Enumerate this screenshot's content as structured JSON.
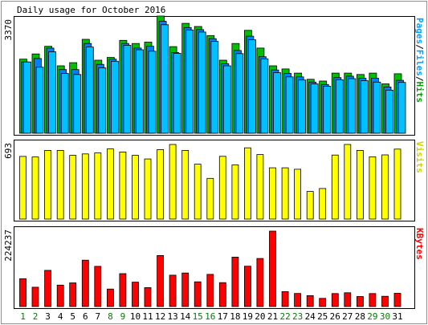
{
  "title": "Daily usage for October 2016",
  "chart_data": [
    {
      "type": "bar",
      "name": "hits-files-pages",
      "ymax_label": "3370",
      "ymax": 3370,
      "side_label_parts": [
        {
          "text": "Pages",
          "color": "#00a0ff"
        },
        {
          "text": "/",
          "color": "#000000"
        },
        {
          "text": "Files",
          "color": "#00a0ff"
        },
        {
          "text": "/",
          "color": "#000000"
        },
        {
          "text": "Hits",
          "color": "#00a000"
        }
      ],
      "categories": [
        "1",
        "2",
        "3",
        "4",
        "5",
        "6",
        "7",
        "8",
        "9",
        "10",
        "11",
        "12",
        "13",
        "14",
        "15",
        "16",
        "17",
        "18",
        "19",
        "20",
        "21",
        "22",
        "23",
        "24",
        "25",
        "26",
        "27",
        "28",
        "29",
        "30",
        "31"
      ],
      "series": [
        {
          "name": "Hits",
          "color": "#00c000",
          "values": [
            2130,
            2280,
            2500,
            1940,
            2030,
            2700,
            2100,
            2180,
            2670,
            2580,
            2620,
            3370,
            2490,
            3160,
            3070,
            2810,
            2100,
            2580,
            2960,
            2450,
            1940,
            1850,
            1730,
            1550,
            1500,
            1730,
            1730,
            1690,
            1730,
            1420,
            1710
          ]
        },
        {
          "name": "Files",
          "color": "#0080ff",
          "values": [
            2050,
            2150,
            2450,
            1830,
            1830,
            2580,
            1980,
            2130,
            2580,
            2450,
            2500,
            3220,
            2320,
            3040,
            2980,
            2720,
            2000,
            2380,
            2790,
            2200,
            1820,
            1720,
            1620,
            1470,
            1400,
            1600,
            1640,
            1580,
            1580,
            1330,
            1520
          ]
        },
        {
          "name": "Pages",
          "color": "#00c0ff",
          "values": [
            2050,
            1900,
            2340,
            1720,
            1690,
            2480,
            1880,
            2070,
            2530,
            2400,
            2360,
            3120,
            2300,
            2970,
            2910,
            2640,
            1940,
            2290,
            2690,
            2140,
            1740,
            1620,
            1530,
            1420,
            1350,
            1540,
            1570,
            1510,
            1470,
            1240,
            1460
          ]
        }
      ]
    },
    {
      "type": "bar",
      "name": "visits",
      "ymax_label": "693",
      "ymax": 693,
      "side_label_parts": [
        {
          "text": "Visits",
          "color": "#d0d000"
        }
      ],
      "categories": [
        "1",
        "2",
        "3",
        "4",
        "5",
        "6",
        "7",
        "8",
        "9",
        "10",
        "11",
        "12",
        "13",
        "14",
        "15",
        "16",
        "17",
        "18",
        "19",
        "20",
        "21",
        "22",
        "23",
        "24",
        "25",
        "26",
        "27",
        "28",
        "29",
        "30",
        "31"
      ],
      "series": [
        {
          "name": "Visits",
          "color": "#ffff00",
          "values": [
            582,
            577,
            638,
            638,
            592,
            605,
            614,
            651,
            623,
            592,
            558,
            645,
            693,
            638,
            510,
            378,
            583,
            503,
            662,
            599,
            476,
            476,
            463,
            256,
            284,
            595,
            693,
            638,
            578,
            596,
            650
          ]
        }
      ]
    },
    {
      "type": "bar",
      "name": "kbytes",
      "ymax_label": "224237",
      "ymax": 224237,
      "side_label_parts": [
        {
          "text": "KBytes",
          "color": "#ff0000"
        }
      ],
      "categories": [
        "1",
        "2",
        "3",
        "4",
        "5",
        "6",
        "7",
        "8",
        "9",
        "10",
        "11",
        "12",
        "13",
        "14",
        "15",
        "16",
        "17",
        "18",
        "19",
        "20",
        "21",
        "22",
        "23",
        "24",
        "25",
        "26",
        "27",
        "28",
        "29",
        "30",
        "31"
      ],
      "series": [
        {
          "name": "KBytes",
          "color": "#ff0000",
          "values": [
            82700,
            57500,
            107500,
            63600,
            70400,
            138000,
            119500,
            51900,
            97900,
            72400,
            56200,
            151600,
            93300,
            99600,
            73500,
            95700,
            71000,
            146900,
            120100,
            143000,
            224237,
            44300,
            38800,
            32400,
            24400,
            38600,
            41000,
            29700,
            38700,
            30500,
            39300
          ]
        }
      ]
    }
  ],
  "x_labels": [
    {
      "text": "1",
      "color": "#008000"
    },
    {
      "text": "2",
      "color": "#008000"
    },
    {
      "text": "3",
      "color": "#000000"
    },
    {
      "text": "4",
      "color": "#000000"
    },
    {
      "text": "5",
      "color": "#000000"
    },
    {
      "text": "6",
      "color": "#000000"
    },
    {
      "text": "7",
      "color": "#000000"
    },
    {
      "text": "8",
      "color": "#008000"
    },
    {
      "text": "9",
      "color": "#008000"
    },
    {
      "text": "10",
      "color": "#000000"
    },
    {
      "text": "11",
      "color": "#000000"
    },
    {
      "text": "12",
      "color": "#000000"
    },
    {
      "text": "13",
      "color": "#000000"
    },
    {
      "text": "14",
      "color": "#000000"
    },
    {
      "text": "15",
      "color": "#008000"
    },
    {
      "text": "16",
      "color": "#008000"
    },
    {
      "text": "17",
      "color": "#000000"
    },
    {
      "text": "18",
      "color": "#000000"
    },
    {
      "text": "19",
      "color": "#000000"
    },
    {
      "text": "20",
      "color": "#000000"
    },
    {
      "text": "21",
      "color": "#000000"
    },
    {
      "text": "22",
      "color": "#008000"
    },
    {
      "text": "23",
      "color": "#008000"
    },
    {
      "text": "24",
      "color": "#000000"
    },
    {
      "text": "25",
      "color": "#000000"
    },
    {
      "text": "26",
      "color": "#000000"
    },
    {
      "text": "27",
      "color": "#000000"
    },
    {
      "text": "28",
      "color": "#000000"
    },
    {
      "text": "29",
      "color": "#008000"
    },
    {
      "text": "30",
      "color": "#008000"
    },
    {
      "text": "31",
      "color": "#000000"
    }
  ]
}
